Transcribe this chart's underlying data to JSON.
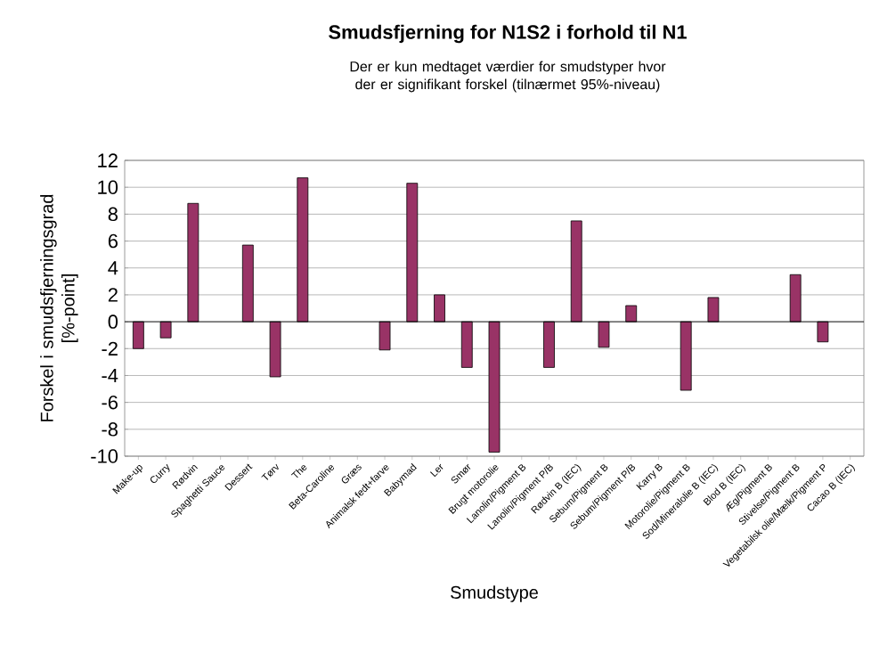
{
  "chart_data": {
    "type": "bar",
    "title": "Smudsfjerning for N1S2 i forhold til N1",
    "subtitle": "Der er kun medtaget værdier for smudstyper hvor der er signifikant forskel (tilnærmet 95%-niveau)",
    "xlabel": "Smudstype",
    "ylabel": "Forskel i smudsfjerningsgrad [%-point]",
    "categories": [
      "Make-up",
      "Curry",
      "Rødvin",
      "Spaghetti Sauce",
      "Dessert",
      "Tørv",
      "The",
      "Beta-Caroline",
      "Græs",
      "Animalsk fedt+farve",
      "Babymad",
      "Ler",
      "Smør",
      "Brugt motorolie",
      "Lanolin/Pigment B",
      "Lanolin/Pigment P/B",
      "Rødvin B (IEC)",
      "Sebum/Pigment B",
      "Sebum/Pigment P/B",
      "Karry B",
      "Motorolie/Pigment B",
      "Sod/Mineralolie B (IEC)",
      "Blod B (IEC)",
      "Æg/Pigment B",
      "Stivelse/Pigment B",
      "Vegetabilsk olie/Mælk/Pigment P",
      "Cacao B (IEC)"
    ],
    "values": [
      -2.0,
      -1.2,
      8.8,
      null,
      5.7,
      -4.1,
      10.7,
      null,
      null,
      -2.1,
      10.3,
      2.0,
      -3.4,
      -9.7,
      null,
      -3.4,
      7.5,
      -1.9,
      1.2,
      null,
      -5.1,
      1.8,
      null,
      null,
      3.5,
      -1.5,
      null
    ],
    "color": "#993366",
    "ylim": [
      -10,
      12
    ],
    "yticks": [
      -10,
      -8,
      -6,
      -4,
      -2,
      0,
      2,
      4,
      6,
      8,
      10,
      12
    ],
    "grid": "y"
  }
}
